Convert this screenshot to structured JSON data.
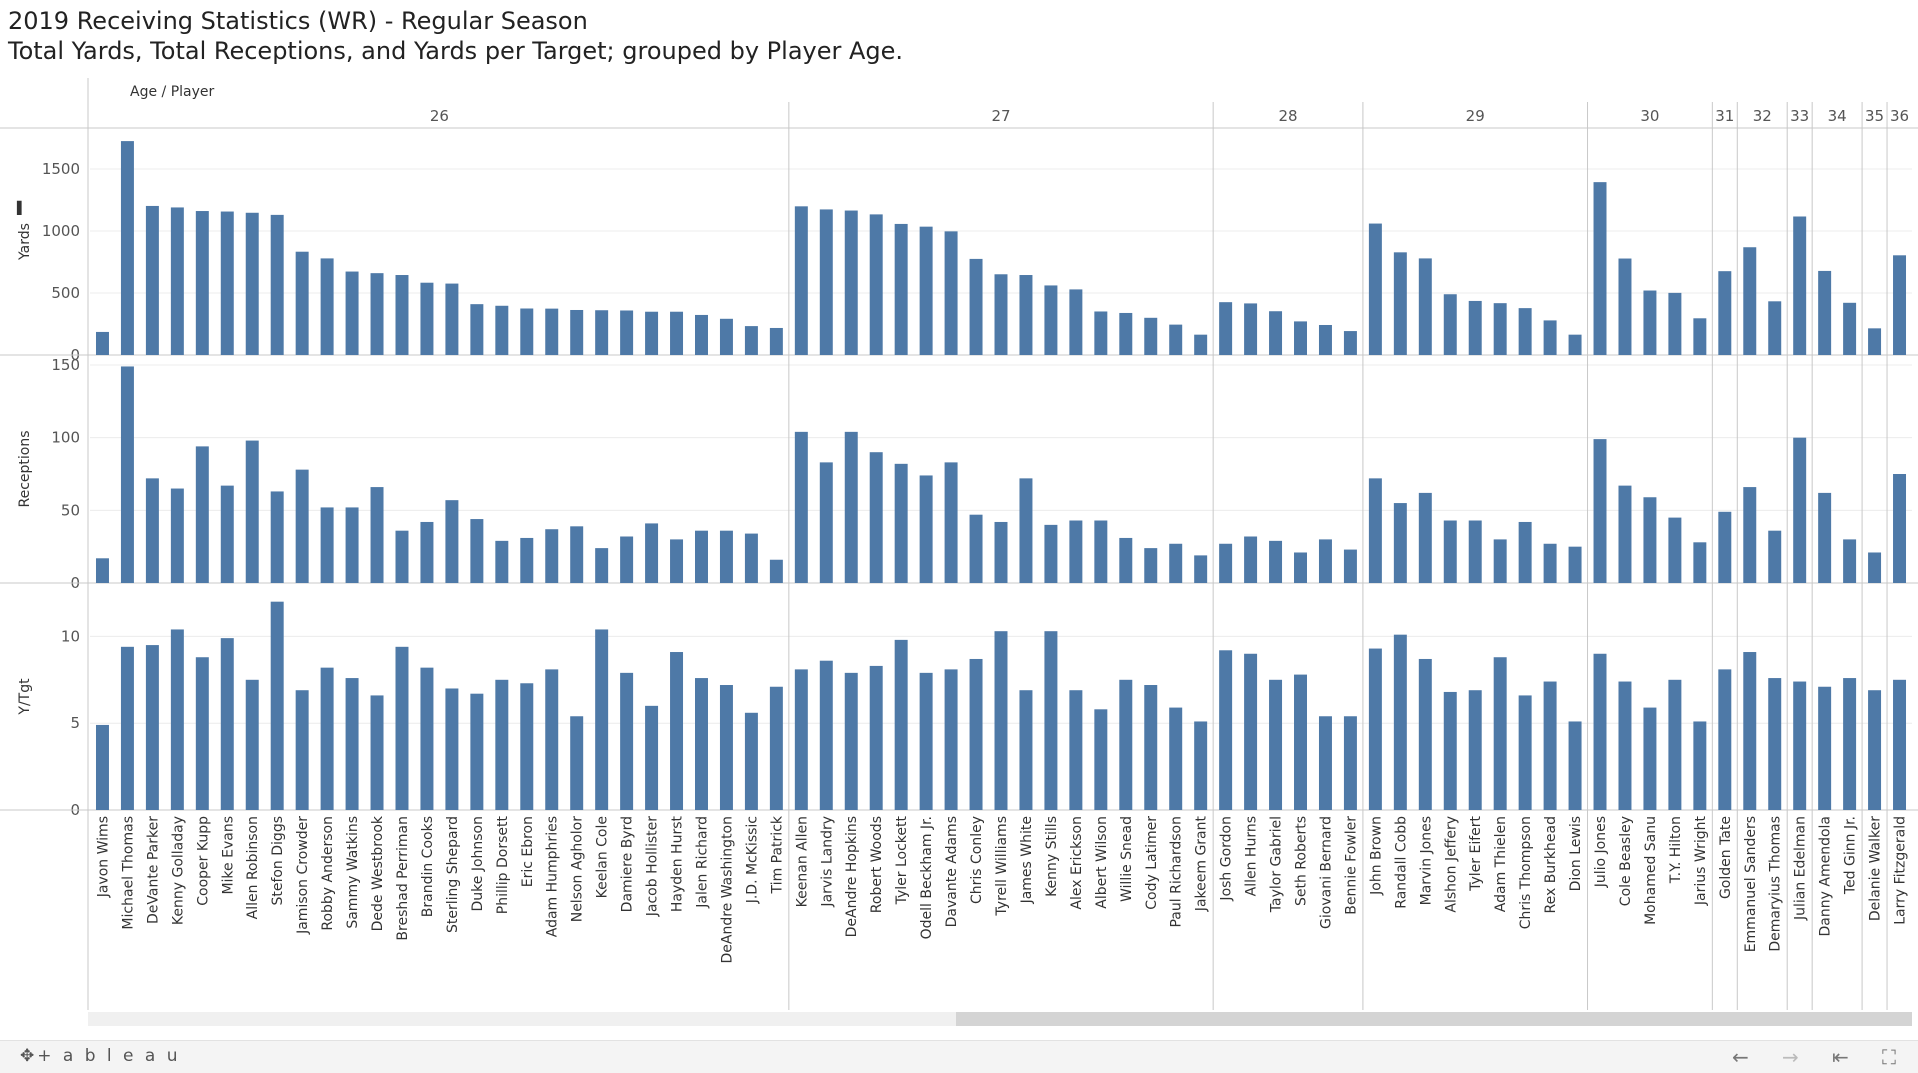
{
  "title": "2019 Receiving Statistics (WR) - Regular Season",
  "subtitle": "Total Yards, Total Receptions, and Yards per Target; grouped by Player Age.",
  "header_label": "Age / Player",
  "footer": {
    "logo_text": "+ a b l e a u",
    "back_icon": "←",
    "forward_icon": "→",
    "first_icon": "⇤",
    "fullscreen_icon": "⛶"
  },
  "colors": {
    "bar": "#4e79a7",
    "grid": "#ececec",
    "divider": "#c8c8c8"
  },
  "chart_data": {
    "type": "bar",
    "panels": [
      {
        "key": "yards",
        "ylabel": "Yards",
        "ylim": [
          0,
          1750
        ],
        "ticks": [
          0,
          500,
          1000,
          1500
        ]
      },
      {
        "key": "receptions",
        "ylabel": "Receptions",
        "ylim": [
          0,
          150
        ],
        "ticks": [
          0,
          50,
          100,
          150
        ]
      },
      {
        "key": "ytgt",
        "ylabel": "Y/Tgt",
        "ylim": [
          0,
          12.5
        ],
        "ticks": [
          0,
          5,
          10
        ]
      }
    ],
    "groups": [
      {
        "age": "26",
        "players": [
          {
            "name": "Javon Wims",
            "yards": 186,
            "receptions": 17,
            "ytgt": 4.9
          },
          {
            "name": "Michael Thomas",
            "yards": 1725,
            "receptions": 149,
            "ytgt": 9.4
          },
          {
            "name": "DeVante Parker",
            "yards": 1202,
            "receptions": 72,
            "ytgt": 9.5
          },
          {
            "name": "Kenny Golladay",
            "yards": 1190,
            "receptions": 65,
            "ytgt": 10.4
          },
          {
            "name": "Cooper Kupp",
            "yards": 1161,
            "receptions": 94,
            "ytgt": 8.8
          },
          {
            "name": "Mike Evans",
            "yards": 1157,
            "receptions": 67,
            "ytgt": 9.9
          },
          {
            "name": "Allen Robinson",
            "yards": 1147,
            "receptions": 98,
            "ytgt": 7.5
          },
          {
            "name": "Stefon Diggs",
            "yards": 1130,
            "receptions": 63,
            "ytgt": 12.0
          },
          {
            "name": "Jamison Crowder",
            "yards": 833,
            "receptions": 78,
            "ytgt": 6.9
          },
          {
            "name": "Robby Anderson",
            "yards": 779,
            "receptions": 52,
            "ytgt": 8.2
          },
          {
            "name": "Sammy Watkins",
            "yards": 673,
            "receptions": 52,
            "ytgt": 7.6
          },
          {
            "name": "Dede Westbrook",
            "yards": 660,
            "receptions": 66,
            "ytgt": 6.6
          },
          {
            "name": "Breshad Perriman",
            "yards": 645,
            "receptions": 36,
            "ytgt": 9.4
          },
          {
            "name": "Brandin Cooks",
            "yards": 583,
            "receptions": 42,
            "ytgt": 8.2
          },
          {
            "name": "Sterling Shepard",
            "yards": 576,
            "receptions": 57,
            "ytgt": 7.0
          },
          {
            "name": "Duke Johnson",
            "yards": 410,
            "receptions": 44,
            "ytgt": 6.7
          },
          {
            "name": "Phillip Dorsett",
            "yards": 397,
            "receptions": 29,
            "ytgt": 7.5
          },
          {
            "name": "Eric Ebron",
            "yards": 375,
            "receptions": 31,
            "ytgt": 7.3
          },
          {
            "name": "Adam Humphries",
            "yards": 374,
            "receptions": 37,
            "ytgt": 8.1
          },
          {
            "name": "Nelson Agholor",
            "yards": 363,
            "receptions": 39,
            "ytgt": 5.4
          },
          {
            "name": "Keelan Cole",
            "yards": 361,
            "receptions": 24,
            "ytgt": 10.4
          },
          {
            "name": "Damiere Byrd",
            "yards": 359,
            "receptions": 32,
            "ytgt": 7.9
          },
          {
            "name": "Jacob Hollister",
            "yards": 349,
            "receptions": 41,
            "ytgt": 6.0
          },
          {
            "name": "Hayden Hurst",
            "yards": 349,
            "receptions": 30,
            "ytgt": 9.1
          },
          {
            "name": "Jalen Richard",
            "yards": 323,
            "receptions": 36,
            "ytgt": 7.6
          },
          {
            "name": "DeAndre Washington",
            "yards": 292,
            "receptions": 36,
            "ytgt": 7.2
          },
          {
            "name": "J.D. McKissic",
            "yards": 233,
            "receptions": 34,
            "ytgt": 5.6
          },
          {
            "name": "Tim Patrick",
            "yards": 218,
            "receptions": 16,
            "ytgt": 7.1
          }
        ]
      },
      {
        "age": "27",
        "players": [
          {
            "name": "Keenan Allen",
            "yards": 1199,
            "receptions": 104,
            "ytgt": 8.1
          },
          {
            "name": "Jarvis Landry",
            "yards": 1174,
            "receptions": 83,
            "ytgt": 8.6
          },
          {
            "name": "DeAndre Hopkins",
            "yards": 1165,
            "receptions": 104,
            "ytgt": 7.9
          },
          {
            "name": "Robert Woods",
            "yards": 1134,
            "receptions": 90,
            "ytgt": 8.3
          },
          {
            "name": "Tyler Lockett",
            "yards": 1057,
            "receptions": 82,
            "ytgt": 9.8
          },
          {
            "name": "Odell Beckham Jr.",
            "yards": 1035,
            "receptions": 74,
            "ytgt": 7.9
          },
          {
            "name": "Davante Adams",
            "yards": 997,
            "receptions": 83,
            "ytgt": 8.1
          },
          {
            "name": "Chris Conley",
            "yards": 775,
            "receptions": 47,
            "ytgt": 8.7
          },
          {
            "name": "Tyrell Williams",
            "yards": 651,
            "receptions": 42,
            "ytgt": 10.3
          },
          {
            "name": "James White",
            "yards": 645,
            "receptions": 72,
            "ytgt": 6.9
          },
          {
            "name": "Kenny Stills",
            "yards": 561,
            "receptions": 40,
            "ytgt": 10.3
          },
          {
            "name": "Alex Erickson",
            "yards": 529,
            "receptions": 43,
            "ytgt": 6.9
          },
          {
            "name": "Albert Wilson",
            "yards": 351,
            "receptions": 43,
            "ytgt": 5.8
          },
          {
            "name": "Willie Snead",
            "yards": 339,
            "receptions": 31,
            "ytgt": 7.5
          },
          {
            "name": "Cody Latimer",
            "yards": 300,
            "receptions": 24,
            "ytgt": 7.2
          },
          {
            "name": "Paul Richardson",
            "yards": 245,
            "receptions": 27,
            "ytgt": 5.9
          },
          {
            "name": "Jakeem Grant",
            "yards": 164,
            "receptions": 19,
            "ytgt": 5.1
          }
        ]
      },
      {
        "age": "28",
        "players": [
          {
            "name": "Josh Gordon",
            "yards": 426,
            "receptions": 27,
            "ytgt": 9.2
          },
          {
            "name": "Allen Hurns",
            "yards": 416,
            "receptions": 32,
            "ytgt": 9.0
          },
          {
            "name": "Taylor Gabriel",
            "yards": 353,
            "receptions": 29,
            "ytgt": 7.5
          },
          {
            "name": "Seth Roberts",
            "yards": 271,
            "receptions": 21,
            "ytgt": 7.8
          },
          {
            "name": "Giovani Bernard",
            "yards": 242,
            "receptions": 30,
            "ytgt": 5.4
          },
          {
            "name": "Bennie Fowler",
            "yards": 193,
            "receptions": 23,
            "ytgt": 5.4
          }
        ]
      },
      {
        "age": "29",
        "players": [
          {
            "name": "John Brown",
            "yards": 1060,
            "receptions": 72,
            "ytgt": 9.3
          },
          {
            "name": "Randall Cobb",
            "yards": 828,
            "receptions": 55,
            "ytgt": 10.1
          },
          {
            "name": "Marvin Jones",
            "yards": 779,
            "receptions": 62,
            "ytgt": 8.7
          },
          {
            "name": "Alshon Jeffery",
            "yards": 490,
            "receptions": 43,
            "ytgt": 6.8
          },
          {
            "name": "Tyler Eifert",
            "yards": 436,
            "receptions": 43,
            "ytgt": 6.9
          },
          {
            "name": "Adam Thielen",
            "yards": 418,
            "receptions": 30,
            "ytgt": 8.8
          },
          {
            "name": "Chris Thompson",
            "yards": 378,
            "receptions": 42,
            "ytgt": 6.6
          },
          {
            "name": "Rex Burkhead",
            "yards": 279,
            "receptions": 27,
            "ytgt": 7.4
          },
          {
            "name": "Dion Lewis",
            "yards": 164,
            "receptions": 25,
            "ytgt": 5.1
          }
        ]
      },
      {
        "age": "30",
        "players": [
          {
            "name": "Julio Jones",
            "yards": 1394,
            "receptions": 99,
            "ytgt": 9.0
          },
          {
            "name": "Cole Beasley",
            "yards": 778,
            "receptions": 67,
            "ytgt": 7.4
          },
          {
            "name": "Mohamed Sanu",
            "yards": 520,
            "receptions": 59,
            "ytgt": 5.9
          },
          {
            "name": "T.Y. Hilton",
            "yards": 501,
            "receptions": 45,
            "ytgt": 7.5
          },
          {
            "name": "Jarius Wright",
            "yards": 296,
            "receptions": 28,
            "ytgt": 5.1
          }
        ]
      },
      {
        "age": "31",
        "players": [
          {
            "name": "Golden Tate",
            "yards": 676,
            "receptions": 49,
            "ytgt": 8.1
          }
        ]
      },
      {
        "age": "32",
        "players": [
          {
            "name": "Emmanuel Sanders",
            "yards": 869,
            "receptions": 66,
            "ytgt": 9.1
          },
          {
            "name": "Demaryius Thomas",
            "yards": 433,
            "receptions": 36,
            "ytgt": 7.6
          }
        ]
      },
      {
        "age": "33",
        "players": [
          {
            "name": "Julian Edelman",
            "yards": 1117,
            "receptions": 100,
            "ytgt": 7.4
          }
        ]
      },
      {
        "age": "34",
        "players": [
          {
            "name": "Danny Amendola",
            "yards": 678,
            "receptions": 62,
            "ytgt": 7.1
          },
          {
            "name": "Ted Ginn Jr.",
            "yards": 421,
            "receptions": 30,
            "ytgt": 7.6
          }
        ]
      },
      {
        "age": "35",
        "players": [
          {
            "name": "Delanie Walker",
            "yards": 215,
            "receptions": 21,
            "ytgt": 6.9
          }
        ]
      },
      {
        "age": "36",
        "players": [
          {
            "name": "Larry Fitzgerald",
            "yards": 804,
            "receptions": 75,
            "ytgt": 7.5
          }
        ]
      }
    ]
  }
}
